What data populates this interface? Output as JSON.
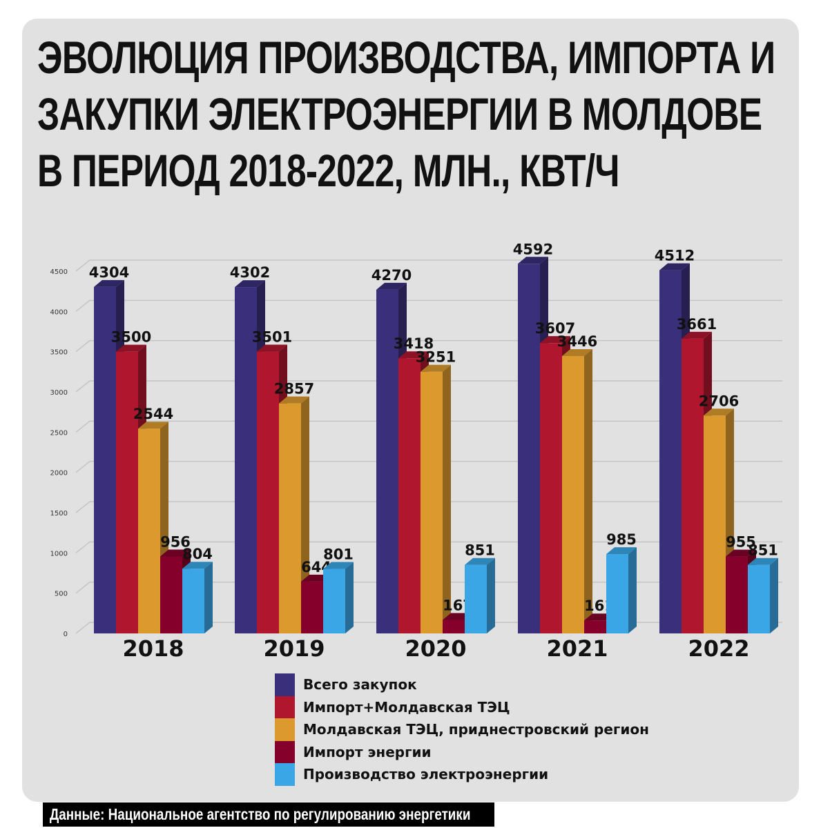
{
  "chart_data": {
    "type": "bar",
    "title": "ЭВОЛЮЦИЯ ПРОИЗВОДСТВА, ИМПОРТА И ЗАКУПКИ ЭЛЕКТРОЭНЕРГИИ В МОЛДОВЕ В ПЕРИОД 2018-2022, МЛН., КВТ/Ч",
    "title_lines": [
      "ЭВОЛЮЦИЯ ПРОИЗВОДСТВА, ИМПОРТА И",
      "ЗАКУПКИ ЭЛЕКТРОЭНЕРГИИ В МОЛДОВЕ",
      "В ПЕРИОД 2018-2022, МЛН., КВТ/Ч"
    ],
    "categories": [
      "2018",
      "2019",
      "2020",
      "2021",
      "2022"
    ],
    "series": [
      {
        "name": "Всего закупок",
        "color": "#3a2f7a",
        "values": [
          4304,
          4302,
          4270,
          4592,
          4512
        ]
      },
      {
        "name": "Импорт+Молдавская ТЭЦ",
        "color": "#b0172e",
        "values": [
          3500,
          3501,
          3418,
          3607,
          3661
        ]
      },
      {
        "name": "Молдавская ТЭЦ, приднестровский регион",
        "color": "#dc9a2e",
        "values": [
          2544,
          2857,
          3251,
          3446,
          2706
        ]
      },
      {
        "name": "Импорт энергии",
        "color": "#85002a",
        "values": [
          956,
          644,
          167,
          161,
          955
        ]
      },
      {
        "name": "Производство электроэнергии",
        "color": "#3aa6e6",
        "values": [
          804,
          801,
          851,
          985,
          851
        ]
      }
    ],
    "yticks": [
      0,
      500,
      1000,
      1500,
      2000,
      2500,
      3000,
      3500,
      4000,
      4500
    ],
    "ylim": [
      0,
      4500
    ],
    "grid": true,
    "legend_position": "bottom",
    "style": "3d-bar"
  },
  "footer": {
    "source": "Данные:  Национальное агентство по регулированию энергетики"
  }
}
